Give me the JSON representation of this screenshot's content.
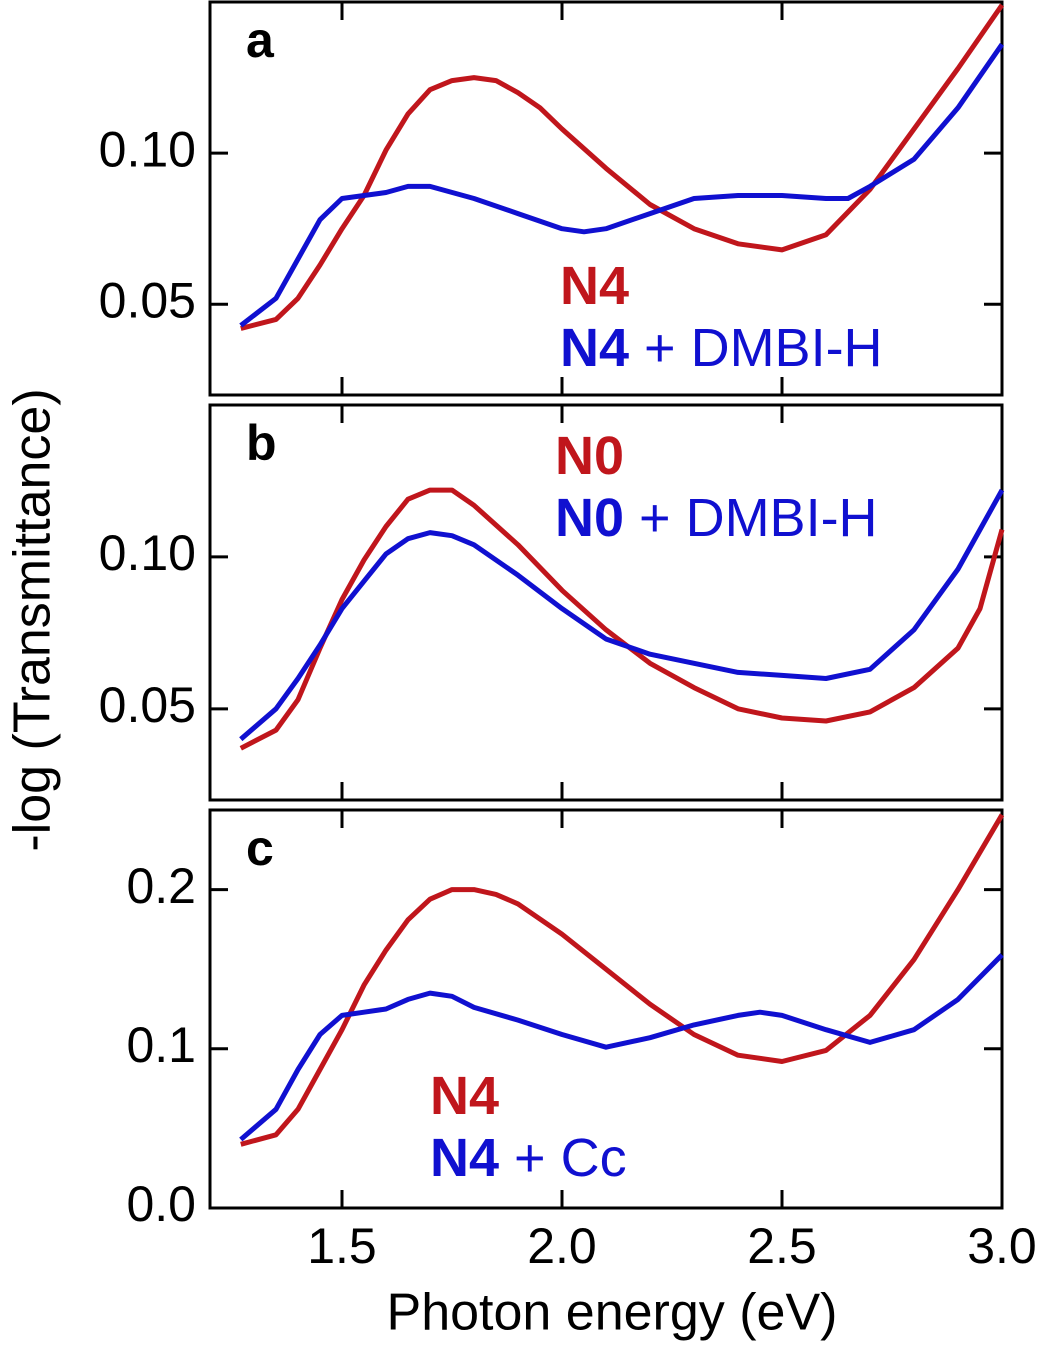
{
  "chart_data": [
    {
      "type": "line",
      "label": "a",
      "xlim": [
        1.2,
        3.0
      ],
      "ylim": [
        0.02,
        0.15
      ],
      "yticks": [
        0.05,
        {
          "value": 0.1,
          "label": "0.10"
        }
      ],
      "series": [
        {
          "name": "N4",
          "color": "#c0161c",
          "x": [
            1.27,
            1.35,
            1.4,
            1.45,
            1.5,
            1.55,
            1.6,
            1.65,
            1.7,
            1.75,
            1.8,
            1.85,
            1.9,
            1.95,
            2.0,
            2.1,
            2.2,
            2.3,
            2.4,
            2.5,
            2.6,
            2.7,
            2.8,
            2.9,
            3.0
          ],
          "values": [
            0.042,
            0.045,
            0.052,
            0.063,
            0.075,
            0.086,
            0.101,
            0.113,
            0.121,
            0.124,
            0.125,
            0.124,
            0.12,
            0.115,
            0.108,
            0.095,
            0.083,
            0.075,
            0.07,
            0.068,
            0.073,
            0.088,
            0.108,
            0.128,
            0.149
          ]
        },
        {
          "name": "N4 + DMBI-H",
          "color": "#1010d0",
          "x": [
            1.27,
            1.35,
            1.4,
            1.45,
            1.5,
            1.55,
            1.6,
            1.65,
            1.7,
            1.8,
            1.9,
            2.0,
            2.05,
            2.1,
            2.2,
            2.3,
            2.4,
            2.5,
            2.6,
            2.65,
            2.7,
            2.8,
            2.9,
            3.0
          ],
          "values": [
            0.043,
            0.052,
            0.065,
            0.078,
            0.085,
            0.086,
            0.087,
            0.089,
            0.089,
            0.085,
            0.08,
            0.075,
            0.074,
            0.075,
            0.08,
            0.085,
            0.086,
            0.086,
            0.085,
            0.085,
            0.089,
            0.098,
            0.115,
            0.136
          ]
        }
      ]
    },
    {
      "type": "line",
      "label": "b",
      "y_label": "-log (Transmittance)",
      "xlim": [
        1.2,
        3.0
      ],
      "ylim": [
        0.02,
        0.15
      ],
      "yticks": [
        0.05,
        {
          "value": 0.1,
          "label": "0.10"
        }
      ],
      "series": [
        {
          "name": "N0",
          "color": "#c0161c",
          "x": [
            1.27,
            1.35,
            1.4,
            1.45,
            1.5,
            1.55,
            1.6,
            1.65,
            1.7,
            1.75,
            1.8,
            1.9,
            2.0,
            2.1,
            2.2,
            2.3,
            2.4,
            2.5,
            2.6,
            2.7,
            2.8,
            2.9,
            2.95,
            3.0
          ],
          "values": [
            0.037,
            0.043,
            0.053,
            0.07,
            0.086,
            0.099,
            0.11,
            0.119,
            0.122,
            0.122,
            0.117,
            0.104,
            0.089,
            0.076,
            0.065,
            0.057,
            0.05,
            0.047,
            0.046,
            0.049,
            0.057,
            0.07,
            0.083,
            0.109
          ]
        },
        {
          "name": "N0 + DMBI-H",
          "color": "#1010d0",
          "x": [
            1.27,
            1.35,
            1.4,
            1.45,
            1.5,
            1.55,
            1.6,
            1.65,
            1.7,
            1.75,
            1.8,
            1.9,
            2.0,
            2.1,
            2.2,
            2.3,
            2.4,
            2.5,
            2.6,
            2.7,
            2.8,
            2.9,
            2.95,
            3.0
          ],
          "values": [
            0.04,
            0.05,
            0.06,
            0.071,
            0.083,
            0.092,
            0.101,
            0.106,
            0.108,
            0.107,
            0.104,
            0.094,
            0.083,
            0.073,
            0.068,
            0.065,
            0.062,
            0.061,
            0.06,
            0.063,
            0.076,
            0.096,
            0.109,
            0.122
          ]
        }
      ]
    },
    {
      "type": "line",
      "label": "c",
      "x_label": "Photon energy (eV)",
      "xlim": [
        1.2,
        3.0
      ],
      "ylim": [
        0,
        0.25
      ],
      "xticks": [
        1.5,
        {
          "value": 2,
          "label": "2.0"
        },
        2.5,
        {
          "value": 3,
          "label": "3.0"
        }
      ],
      "yticks": [
        {
          "value": 0,
          "label": "0.0"
        },
        0.1,
        0.2
      ],
      "series": [
        {
          "name": "N4",
          "color": "#c0161c",
          "x": [
            1.27,
            1.35,
            1.4,
            1.45,
            1.5,
            1.55,
            1.6,
            1.65,
            1.7,
            1.75,
            1.8,
            1.85,
            1.9,
            2.0,
            2.1,
            2.2,
            2.3,
            2.4,
            2.5,
            2.6,
            2.7,
            2.8,
            2.9,
            3.0
          ],
          "values": [
            0.04,
            0.046,
            0.062,
            0.087,
            0.112,
            0.14,
            0.162,
            0.181,
            0.194,
            0.2,
            0.2,
            0.197,
            0.191,
            0.172,
            0.15,
            0.128,
            0.109,
            0.096,
            0.092,
            0.099,
            0.121,
            0.156,
            0.2,
            0.247
          ]
        },
        {
          "name": "N4 + Cc",
          "color": "#1010d0",
          "x": [
            1.27,
            1.35,
            1.4,
            1.45,
            1.5,
            1.55,
            1.6,
            1.65,
            1.7,
            1.75,
            1.8,
            1.9,
            2.0,
            2.1,
            2.2,
            2.3,
            2.4,
            2.45,
            2.5,
            2.6,
            2.7,
            2.8,
            2.9,
            3.0
          ],
          "values": [
            0.043,
            0.062,
            0.087,
            0.109,
            0.121,
            0.123,
            0.125,
            0.131,
            0.135,
            0.133,
            0.126,
            0.118,
            0.109,
            0.101,
            0.107,
            0.115,
            0.121,
            0.123,
            0.121,
            0.112,
            0.104,
            0.112,
            0.131,
            0.159
          ]
        }
      ]
    }
  ]
}
